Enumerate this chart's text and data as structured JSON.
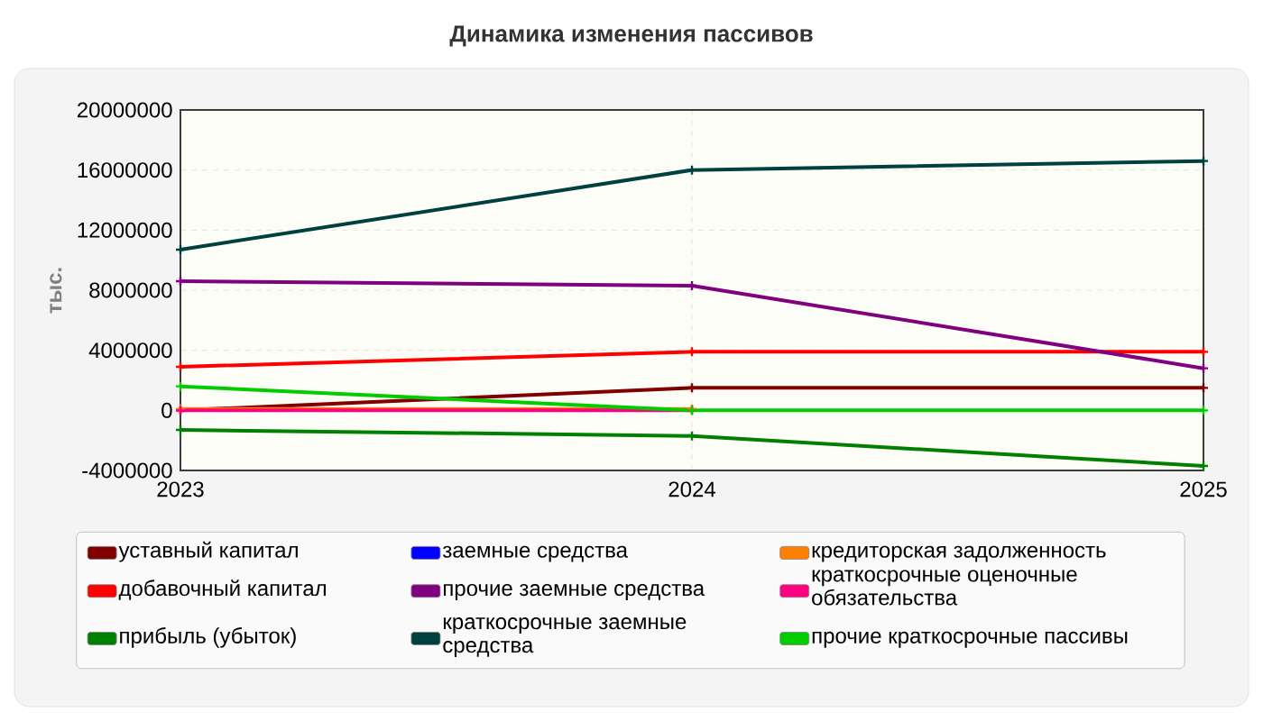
{
  "chart_data": {
    "type": "line",
    "title": "Динамика изменения пассивов",
    "ylabel": "тыс.",
    "x": [
      2023,
      2024,
      2025
    ],
    "xlim": [
      2023,
      2025
    ],
    "xticks": [
      2023,
      2024,
      2025
    ],
    "ylim": [
      -4000000,
      20000000
    ],
    "yticks": [
      -4000000,
      0,
      4000000,
      8000000,
      12000000,
      16000000,
      20000000
    ],
    "grid": true,
    "legend": "bottom",
    "marker": "cross",
    "line_style": "solid",
    "series": [
      {
        "name": "уставный капитал",
        "color": "#800000",
        "values": [
          0,
          1500000,
          1500000
        ]
      },
      {
        "name": "добавочный капитал",
        "color": "#ff0000",
        "values": [
          2900000,
          3900000,
          3900000
        ]
      },
      {
        "name": "прибыль (убыток)",
        "color": "#008000",
        "values": [
          -1300000,
          -1700000,
          -3700000
        ]
      },
      {
        "name": "заемные средства",
        "color": "#0000ff",
        "values": [
          null,
          null,
          null
        ]
      },
      {
        "name": "прочие заемные средства",
        "color": "#800080",
        "values": [
          8600000,
          8300000,
          2800000
        ]
      },
      {
        "name": "краткосрочные заемные средства",
        "color": "#004040",
        "values": [
          10700000,
          16000000,
          16600000
        ]
      },
      {
        "name": "кредиторская задолженность",
        "color": "#ff8000",
        "values": [
          100000,
          100000,
          null
        ]
      },
      {
        "name": "краткосрочные оценочные обязательства",
        "color": "#ff0080",
        "values": [
          0,
          0,
          null
        ]
      },
      {
        "name": "прочие краткосрочные пассивы",
        "color": "#00cc00",
        "values": [
          1600000,
          0,
          0
        ]
      }
    ]
  }
}
